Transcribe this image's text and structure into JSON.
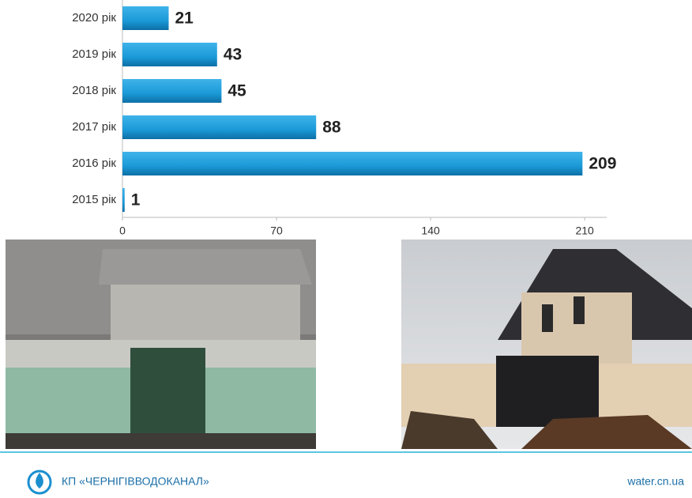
{
  "chart_data": {
    "type": "bar",
    "orientation": "horizontal",
    "categories": [
      "2020 рік",
      "2019 рік",
      "2018 рік",
      "2017 рік",
      "2016 рік",
      "2015 рік"
    ],
    "values": [
      21,
      43,
      45,
      88,
      209,
      1
    ],
    "color": "#1b9ad8",
    "xlim": [
      0,
      220
    ],
    "xticks": [
      0,
      70,
      140,
      210
    ]
  },
  "footer": {
    "organization": "КП «ЧЕРНІГІВВОДОКАНАЛ»",
    "website": "water.cn.ua"
  }
}
